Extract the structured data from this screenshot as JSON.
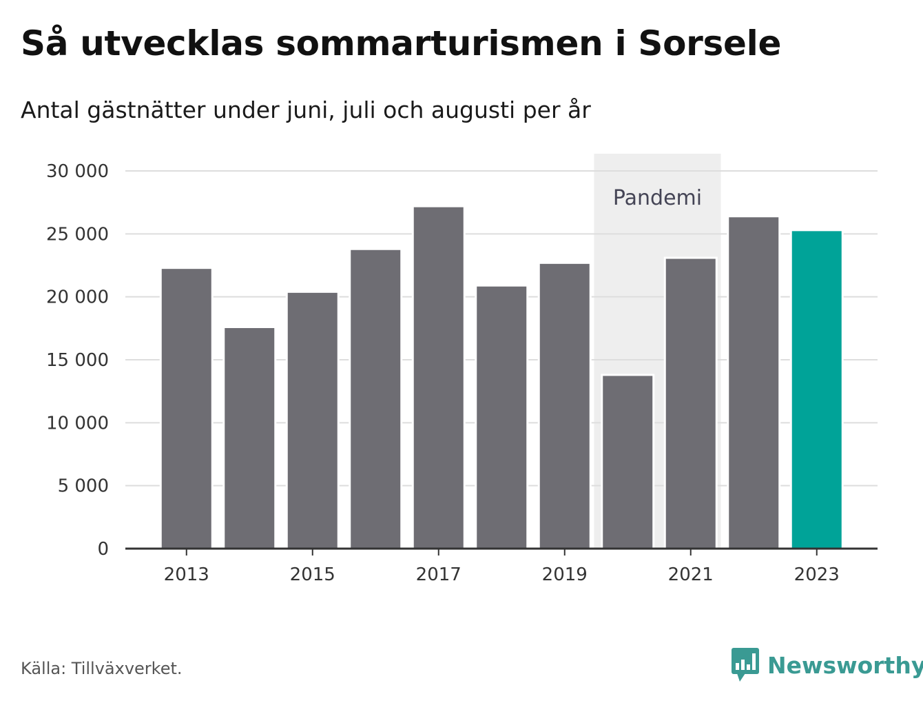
{
  "title": "Så utvecklas sommarturismen i Sorsele",
  "subtitle": "Antal gästnätter under juni, juli och augusti per år",
  "source": "Källa: Tillväxverket.",
  "brand": {
    "name": "Newsworthy",
    "icon": "bar-chart-speech-bubble-icon",
    "color": "#3a9a93"
  },
  "colors": {
    "bar": "#6e6d73",
    "highlight": "#00a398",
    "shade": "#eeeeee",
    "grid": "#dddddd",
    "axis": "#333333"
  },
  "chart_data": {
    "type": "bar",
    "categories": [
      "2013",
      "2014",
      "2015",
      "2016",
      "2017",
      "2018",
      "2019",
      "2020",
      "2021",
      "2022",
      "2023"
    ],
    "values": [
      22300,
      17600,
      20400,
      23800,
      27200,
      20900,
      22700,
      13800,
      23100,
      26400,
      25300
    ],
    "highlight_category": "2023",
    "ylim": [
      0,
      30000
    ],
    "yticks": [
      0,
      5000,
      10000,
      15000,
      20000,
      25000,
      30000
    ],
    "ytick_labels": [
      "0",
      "5 000",
      "10 000",
      "15 000",
      "20 000",
      "25 000",
      "30 000"
    ],
    "xtick_labels": [
      "2013",
      "2015",
      "2017",
      "2019",
      "2021",
      "2023"
    ],
    "grid": true,
    "legend": "none",
    "annotations": [
      {
        "label": "Pandemi",
        "from": "2020",
        "to": "2021"
      }
    ]
  }
}
